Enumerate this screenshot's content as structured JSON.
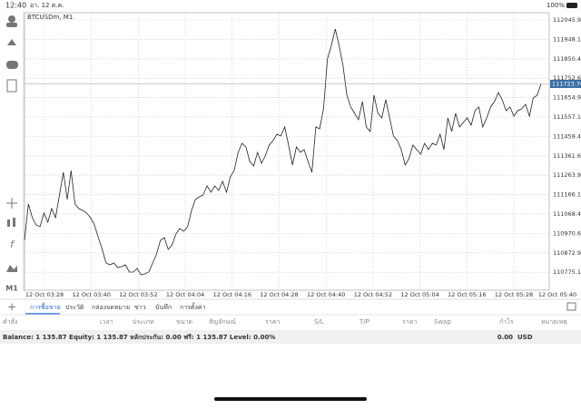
{
  "status_bar": {
    "time": "12:40",
    "date": "อา. 12 ต.ค.",
    "battery": "100%"
  },
  "chart_data": {
    "type": "line",
    "symbol": "BTCUSDm, M1",
    "timeframe_button": "M1",
    "color": "#222222",
    "grid": true,
    "x_labels": [
      "12 Oct 03:28",
      "12 Oct 03:40",
      "12 Oct 03:52",
      "12 Oct 04:04",
      "12 Oct 04:16",
      "12 Oct 04:28",
      "12 Oct 04:40",
      "12 Oct 04:52",
      "12 Oct 05:04",
      "12 Oct 05:16",
      "12 Oct 05:28",
      "12 Oct 05:40"
    ],
    "ylim": [
      110684.6,
      112082.4
    ],
    "yticks": [
      {
        "value": 112045.9,
        "label": "112045.90"
      },
      111948.15,
      {
        "value": 111850.4,
        "label": "111850.40"
      },
      111752.65,
      {
        "value": 111654.9,
        "label": "111654.90"
      },
      111557.15,
      {
        "value": 111459.4,
        "label": "111459.40"
      },
      111361.65,
      {
        "value": 111263.9,
        "label": "111263.90"
      },
      111166.15,
      {
        "value": 111068.4,
        "label": "111068.40"
      },
      110970.65,
      {
        "value": 110872.9,
        "label": "110872.90"
      },
      110775.15
    ],
    "values": [
      110935.9,
      111118.6,
      111050.1,
      111013.5,
      111004.4,
      111072.9,
      111027.2,
      111095.8,
      111050.1,
      111164.3,
      111278.5,
      111141.4,
      111287.6,
      111118.6,
      111095.8,
      111086.6,
      111072.9,
      111050.1,
      111013.5,
      110949.6,
      110890.2,
      110821.7,
      110812.5,
      110821.7,
      110798.8,
      110803.4,
      110812.5,
      110776.0,
      110776.0,
      110794.3,
      110762.3,
      110766.9,
      110776.0,
      110821.7,
      110867.4,
      110935.9,
      110949.6,
      110890.2,
      110913.0,
      110967.9,
      110995.3,
      110981.6,
      111004.4,
      111086.6,
      111141.4,
      111155.1,
      111164.3,
      111210.0,
      111178.0,
      111210.0,
      111187.1,
      111232.8,
      111178.0,
      111255.6,
      111287.6,
      111379.0,
      111424.7,
      111406.4,
      111333.3,
      111310.5,
      111379.0,
      111324.2,
      111360.7,
      111415.5,
      111438.4,
      111470.3,
      111461.2,
      111506.9,
      111415.5,
      111315.0,
      111406.4,
      111379.0,
      111392.7,
      111333.3,
      111278.5,
      111506.9,
      111497.7,
      111598.2,
      111849.5,
      111918.0,
      112000.2,
      111918.0,
      111817.5,
      111666.8,
      111607.4,
      111575.4,
      111543.4,
      111634.8,
      111506.9,
      111484.0,
      111666.8,
      111575.4,
      111552.6,
      111643.9,
      111552.6,
      111461.2,
      111438.4,
      111392.7,
      111315.0,
      111347.0,
      111415.5,
      111392.7,
      111369.8,
      111424.7,
      111392.7,
      111424.7,
      111415.5,
      111470.3,
      111392.7,
      111552.6,
      111484.0,
      111575.4,
      111506.9,
      111529.7,
      111552.6,
      111516.0,
      111589.1,
      111607.4,
      111506.9,
      111552.6,
      111607.4,
      111634.8,
      111680.5,
      111643.9,
      111589.1,
      111607.4,
      111561.7,
      111589.1,
      111598.2,
      111621.1,
      111561.7,
      111653.1,
      111666.8,
      111723.76
    ]
  },
  "tabs": [
    "การซื้อขาย",
    "ประวัติ",
    "กล่องจดหมาย",
    "ข่าว",
    "บันทึก",
    "การตั้งค่า"
  ],
  "table": {
    "headers": [
      "คำสั่ง",
      "เวลา",
      "ประเภท",
      "ขนาด",
      "สัญลักษณ์",
      "ราคา",
      "S/L",
      "T/P",
      "ราคา",
      "Swap",
      "กำไร",
      "หมายเหตุ"
    ]
  },
  "summary": {
    "balance_line": "Balance: 1 135.87 Equity: 1 135.87 หลักประกัน: 0.00 ฟรี: 1 135.87 Level: 0.00%",
    "profit": "0.00",
    "currency": "USD"
  }
}
